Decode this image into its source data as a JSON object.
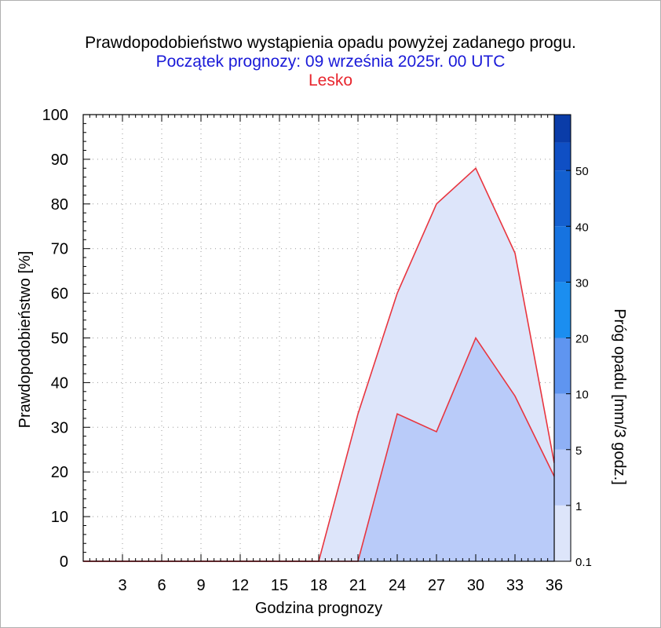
{
  "header": {
    "title": "Prawdopodobieństwo wystąpienia opadu powyżej zadanego progu.",
    "subtitle": "Początek prognozy: 09 września 2025r. 00 UTC",
    "location": "Lesko"
  },
  "colors": {
    "title": "#000000",
    "subtitle": "#1a1ad8",
    "location": "#e8262e",
    "series_line": "#e8353f",
    "fill_0_1": "#dde5fa",
    "fill_1": "#b9cbf9"
  },
  "chart_data": {
    "type": "area",
    "xlabel": "Godzina prognozy",
    "ylabel": "Prawdopodobieństwo [%]",
    "xlim": [
      0,
      36
    ],
    "ylim": [
      0,
      100
    ],
    "xticks": [
      3,
      6,
      9,
      12,
      15,
      18,
      21,
      24,
      27,
      30,
      33,
      36
    ],
    "yticks": [
      0,
      10,
      20,
      30,
      40,
      50,
      60,
      70,
      80,
      90,
      100
    ],
    "grid": true,
    "x": [
      0,
      3,
      6,
      9,
      12,
      15,
      18,
      21,
      24,
      27,
      30,
      33,
      36
    ],
    "series": [
      {
        "threshold": "0.1",
        "values": [
          0,
          0,
          0,
          0,
          0,
          0,
          0,
          33,
          60,
          80,
          88,
          69,
          22
        ]
      },
      {
        "threshold": "1",
        "values": [
          0,
          0,
          0,
          0,
          0,
          0,
          0,
          0,
          33,
          29,
          50,
          37,
          19
        ]
      }
    ],
    "colorbar": {
      "label": "Próg opadu [mm/3 godz.]",
      "levels": [
        "0.1",
        "1",
        "5",
        "10",
        "20",
        "30",
        "40",
        "50"
      ],
      "colors": [
        "#dde5fa",
        "#b9cbf9",
        "#8eb0f5",
        "#5f95f0",
        "#1b8ef0",
        "#1673e0",
        "#1360d0",
        "#0f4fc4",
        "#0a3ca8"
      ]
    }
  }
}
